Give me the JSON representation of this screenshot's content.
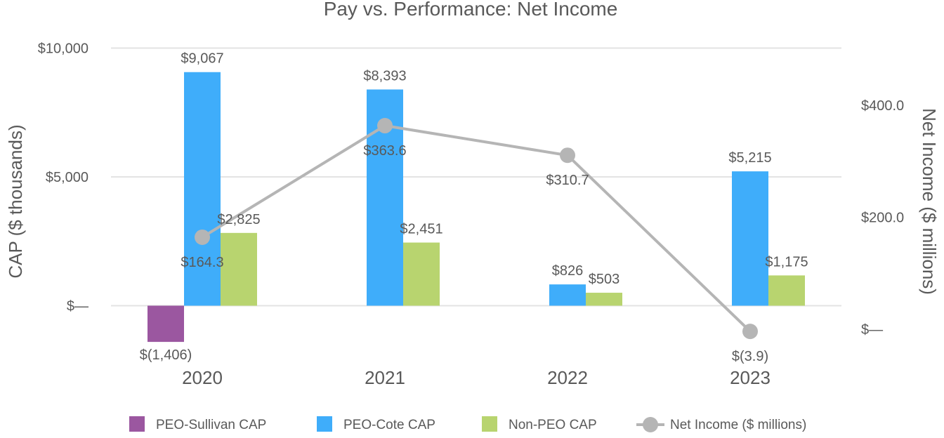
{
  "chart_data": {
    "type": "bar",
    "title": "Pay vs. Performance: Net Income",
    "categories": [
      "2020",
      "2021",
      "2022",
      "2023"
    ],
    "left_axis": {
      "label": "CAP ($ thousands)",
      "ticks": [
        {
          "value": 0,
          "label": "$—"
        },
        {
          "value": 5000,
          "label": "$5,000"
        },
        {
          "value": 10000,
          "label": "$10,000"
        }
      ],
      "range": [
        -1406,
        10000
      ]
    },
    "right_axis": {
      "label": "Net Income ($ millions)",
      "ticks": [
        {
          "value": 0,
          "label": "$—"
        },
        {
          "value": 200,
          "label": "$200.0"
        },
        {
          "value": 400,
          "label": "$400.0"
        }
      ]
    },
    "series": [
      {
        "name": "PEO-Sullivan CAP",
        "kind": "bar",
        "axis": "left",
        "color": "#9b57a0",
        "values": [
          -1406,
          null,
          null,
          null
        ],
        "labels": [
          "$(1,406)",
          null,
          null,
          null
        ]
      },
      {
        "name": "PEO-Cote CAP",
        "kind": "bar",
        "axis": "left",
        "color": "#3fadfa",
        "values": [
          9067,
          8393,
          826,
          5215
        ],
        "labels": [
          "$9,067",
          "$8,393",
          "$826",
          "$5,215"
        ]
      },
      {
        "name": "Non-PEO CAP",
        "kind": "bar",
        "axis": "left",
        "color": "#b8d46f",
        "values": [
          2825,
          2451,
          503,
          1175
        ],
        "labels": [
          "$2,825",
          "$2,451",
          "$503",
          "$1,175"
        ]
      },
      {
        "name": "Net Income ($ millions)",
        "kind": "line",
        "axis": "right",
        "color": "#b5b5b5",
        "values": [
          164.3,
          363.6,
          310.7,
          -3.9
        ],
        "labels": [
          "$164.3",
          "$363.6",
          "$310.7",
          "$(3.9)"
        ]
      }
    ],
    "legend_position": "bottom",
    "grid": true
  }
}
